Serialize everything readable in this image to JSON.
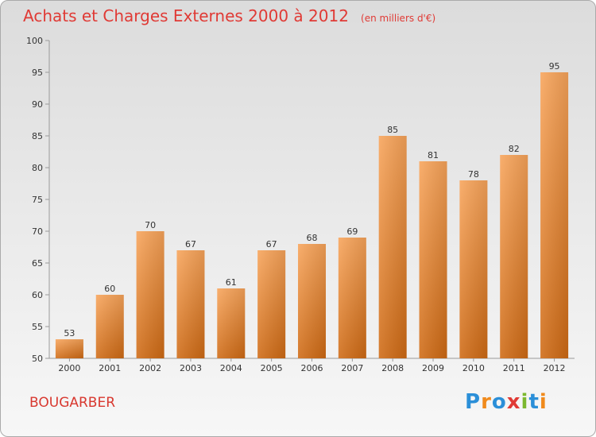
{
  "header": {
    "title": "Achats et Charges Externes 2000 à 2012",
    "unit": "(en milliers d'€)"
  },
  "footer": {
    "city": "BOUGARBER"
  },
  "logo": {
    "text": "Proxiti",
    "letters": [
      {
        "ch": "P",
        "color": "#2b8fd8"
      },
      {
        "ch": "r",
        "color": "#f08a1c"
      },
      {
        "ch": "o",
        "color": "#2b8fd8"
      },
      {
        "ch": "x",
        "color": "#e03a35"
      },
      {
        "ch": "i",
        "color": "#7cb82f"
      },
      {
        "ch": "t",
        "color": "#2b8fd8"
      },
      {
        "ch": "i",
        "color": "#f08a1c"
      }
    ]
  },
  "chart_data": {
    "type": "bar",
    "title": "Achats et Charges Externes 2000 à 2012",
    "subtitle": "(en milliers d'€)",
    "categories": [
      "2000",
      "2001",
      "2002",
      "2003",
      "2004",
      "2005",
      "2006",
      "2007",
      "2008",
      "2009",
      "2010",
      "2011",
      "2012"
    ],
    "values": [
      53,
      60,
      70,
      67,
      61,
      67,
      68,
      69,
      85,
      81,
      78,
      82,
      95
    ],
    "ylim": [
      50,
      100
    ],
    "yticks": [
      50,
      55,
      60,
      65,
      70,
      75,
      80,
      85,
      90,
      95,
      100
    ],
    "grid": false,
    "bar_color": "#f08a2a"
  }
}
